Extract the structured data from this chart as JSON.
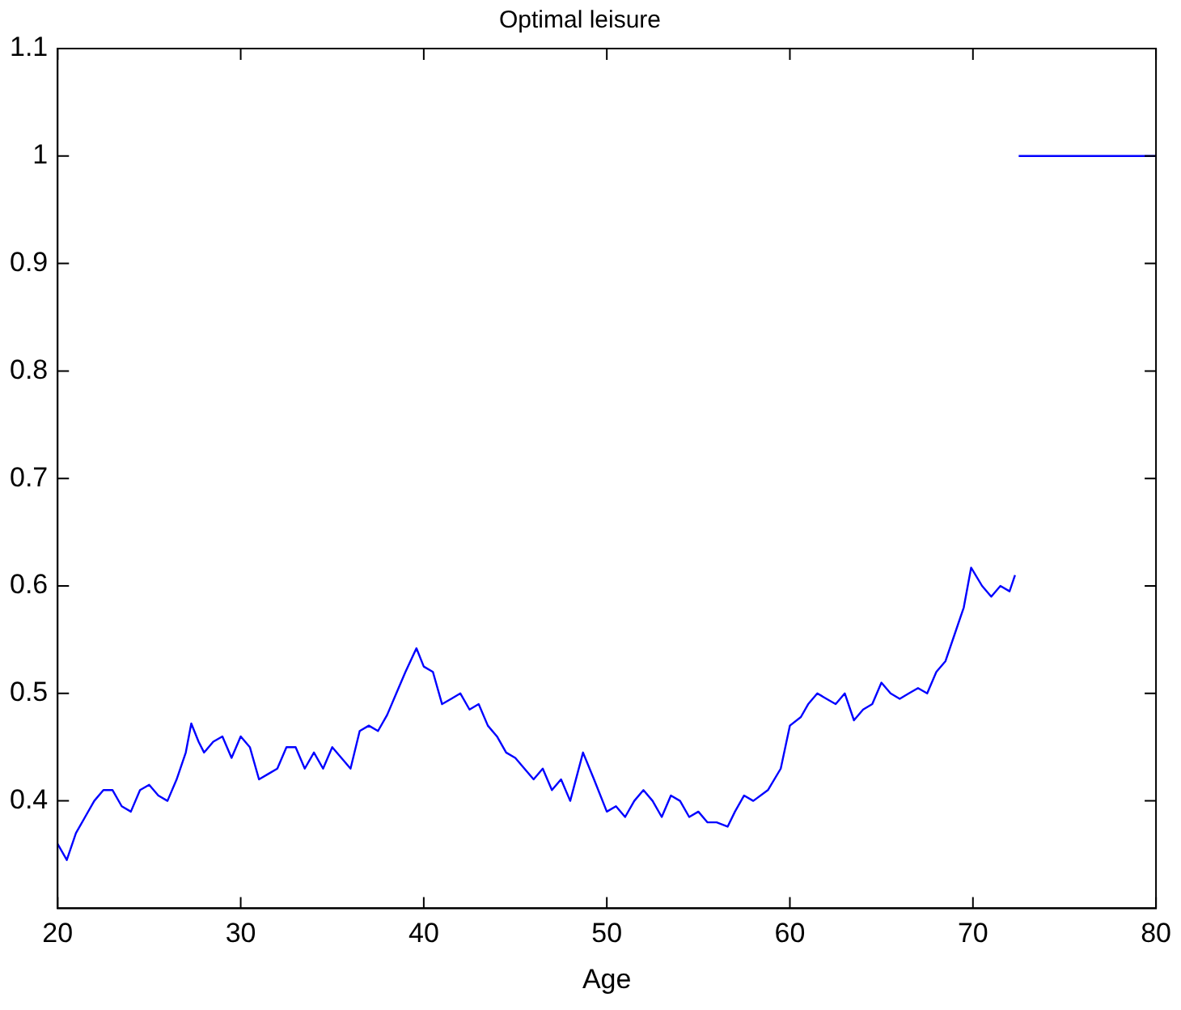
{
  "chart_data": {
    "type": "line",
    "title": "Optimal leisure",
    "xlabel": "Age",
    "x": [
      20,
      20.5,
      21,
      21.5,
      22,
      22.5,
      23,
      23.5,
      24,
      24.5,
      25,
      25.5,
      26,
      26.5,
      27,
      27.3,
      27.7,
      28,
      28.5,
      29,
      29.5,
      30,
      30.5,
      31,
      31.5,
      32,
      32.5,
      33,
      33.5,
      34,
      34.5,
      35,
      35.5,
      36,
      36.5,
      37,
      37.5,
      38,
      38.5,
      39,
      39.6,
      40,
      40.5,
      41,
      41.5,
      42,
      42.5,
      43,
      43.5,
      44,
      44.5,
      45,
      45.5,
      46,
      46.5,
      47,
      47.5,
      48,
      48.7,
      49.3,
      50,
      50.5,
      51,
      51.5,
      52,
      52.5,
      53,
      53.5,
      54,
      54.5,
      55,
      55.5,
      56,
      56.6,
      57,
      57.5,
      58,
      58.8,
      59.5,
      60,
      60.6,
      61,
      61.5,
      62,
      62.5,
      63,
      63.5,
      64,
      64.5,
      65,
      65.5,
      66,
      66.5,
      67,
      67.5,
      68,
      68.5,
      69,
      69.5,
      69.9,
      70.5,
      71,
      71.5,
      72,
      72.3,
      72.4,
      72.5,
      80
    ],
    "series": [
      {
        "color": "#0000ff",
        "values": [
          0.36,
          0.345,
          0.37,
          0.385,
          0.4,
          0.41,
          0.41,
          0.395,
          0.39,
          0.41,
          0.415,
          0.405,
          0.4,
          0.42,
          0.445,
          0.472,
          0.455,
          0.445,
          0.455,
          0.46,
          0.44,
          0.46,
          0.45,
          0.42,
          0.425,
          0.43,
          0.45,
          0.45,
          0.43,
          0.445,
          0.43,
          0.45,
          0.44,
          0.43,
          0.465,
          0.47,
          0.465,
          0.48,
          0.5,
          0.52,
          0.542,
          0.525,
          0.52,
          0.49,
          0.495,
          0.5,
          0.485,
          0.49,
          0.47,
          0.46,
          0.445,
          0.44,
          0.43,
          0.42,
          0.43,
          0.41,
          0.42,
          0.4,
          0.445,
          0.42,
          0.39,
          0.395,
          0.385,
          0.4,
          0.41,
          0.4,
          0.385,
          0.405,
          0.4,
          0.385,
          0.39,
          0.38,
          0.38,
          0.376,
          0.39,
          0.405,
          0.4,
          0.41,
          0.43,
          0.47,
          0.478,
          0.49,
          0.5,
          0.495,
          0.49,
          0.5,
          0.475,
          0.485,
          0.49,
          0.51,
          0.5,
          0.495,
          0.5,
          0.505,
          0.5,
          0.52,
          0.53,
          0.555,
          0.58,
          0.617,
          0.6,
          0.59,
          0.6,
          0.595,
          0.61,
          null,
          1,
          1
        ]
      }
    ],
    "xlim": [
      20,
      80
    ],
    "xticks": [
      20,
      30,
      40,
      50,
      60,
      70,
      80
    ],
    "ylim": [
      0.3,
      1.1
    ],
    "yticks": [
      0.4,
      0.5,
      0.6,
      0.7,
      0.8,
      0.9,
      1,
      1.1
    ],
    "grid": false,
    "legend": false,
    "marker": "none",
    "line_style": "solid"
  }
}
